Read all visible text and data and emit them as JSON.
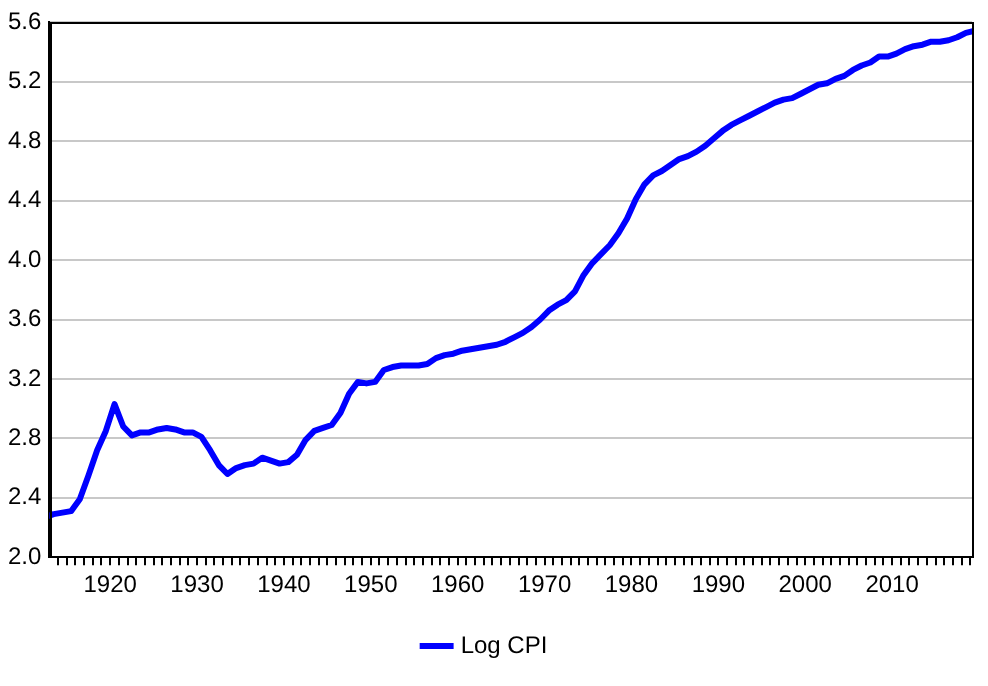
{
  "chart_data": {
    "type": "line",
    "x": [
      1913,
      1913.5,
      1914.5,
      1915.5,
      1916.5,
      1917.5,
      1918.5,
      1919.5,
      1920.5,
      1921.5,
      1922.5,
      1923.5,
      1924.5,
      1925.5,
      1926.5,
      1927.5,
      1928.5,
      1929.5,
      1930.5,
      1931.5,
      1932.5,
      1933.5,
      1934.5,
      1935.5,
      1936.5,
      1937.5,
      1938.5,
      1939.5,
      1940.5,
      1941.5,
      1942.5,
      1943.5,
      1944.5,
      1945.5,
      1946.5,
      1947.5,
      1948.5,
      1949.5,
      1950.5,
      1951.5,
      1952.5,
      1953.5,
      1954.5,
      1955.5,
      1956.5,
      1957.5,
      1958.5,
      1959.5,
      1960.5,
      1961.5,
      1962.5,
      1963.5,
      1964.5,
      1965.5,
      1966.5,
      1967.5,
      1968.5,
      1969.5,
      1970.5,
      1971.5,
      1972.5,
      1973.5,
      1974.5,
      1975.5,
      1976.5,
      1977.5,
      1978.5,
      1979.5,
      1980.5,
      1981.5,
      1982.5,
      1983.5,
      1984.5,
      1985.5,
      1986.5,
      1987.5,
      1988.5,
      1989.5,
      1990.5,
      1991.5,
      1992.5,
      1993.5,
      1994.5,
      1995.5,
      1996.5,
      1997.5,
      1998.5,
      1999.5,
      2000.5,
      2001.5,
      2002.5,
      2003.5,
      2004.5,
      2005.5,
      2006.5,
      2007.5,
      2008.5,
      2009.5,
      2010.5,
      2011.5,
      2012.5,
      2013.5,
      2014.5,
      2015.5,
      2016.5,
      2017.5,
      2018.5,
      2019.2
    ],
    "series": [
      {
        "name": "Log CPI",
        "color": "#0000ff",
        "values": [
          2.28,
          2.29,
          2.3,
          2.31,
          2.39,
          2.55,
          2.72,
          2.85,
          3.03,
          2.88,
          2.82,
          2.84,
          2.84,
          2.86,
          2.87,
          2.86,
          2.84,
          2.84,
          2.81,
          2.72,
          2.62,
          2.56,
          2.6,
          2.62,
          2.63,
          2.67,
          2.65,
          2.63,
          2.64,
          2.69,
          2.79,
          2.85,
          2.87,
          2.89,
          2.97,
          3.1,
          3.18,
          3.17,
          3.18,
          3.26,
          3.28,
          3.29,
          3.29,
          3.29,
          3.3,
          3.34,
          3.36,
          3.37,
          3.39,
          3.4,
          3.41,
          3.42,
          3.43,
          3.45,
          3.48,
          3.51,
          3.55,
          3.6,
          3.66,
          3.7,
          3.73,
          3.79,
          3.9,
          3.98,
          4.04,
          4.1,
          4.18,
          4.28,
          4.41,
          4.51,
          4.57,
          4.6,
          4.64,
          4.68,
          4.7,
          4.73,
          4.77,
          4.82,
          4.87,
          4.91,
          4.94,
          4.97,
          5.0,
          5.03,
          5.06,
          5.08,
          5.09,
          5.12,
          5.15,
          5.18,
          5.19,
          5.22,
          5.24,
          5.28,
          5.31,
          5.33,
          5.37,
          5.37,
          5.39,
          5.42,
          5.44,
          5.45,
          5.47,
          5.47,
          5.48,
          5.5,
          5.53,
          5.54
        ]
      }
    ],
    "xlim": [
      1913,
      2019.2
    ],
    "xticks": [
      {
        "value": 1914,
        "label": null
      },
      {
        "value": 1915,
        "label": null
      },
      {
        "value": 1916,
        "label": null
      },
      {
        "value": 1917,
        "label": null
      },
      {
        "value": 1918,
        "label": null
      },
      {
        "value": 1919,
        "label": null
      },
      1920,
      {
        "value": 1921,
        "label": null
      },
      {
        "value": 1922,
        "label": null
      },
      {
        "value": 1923,
        "label": null
      },
      {
        "value": 1924,
        "label": null
      },
      {
        "value": 1925,
        "label": null
      },
      {
        "value": 1926,
        "label": null
      },
      {
        "value": 1927,
        "label": null
      },
      {
        "value": 1928,
        "label": null
      },
      {
        "value": 1929,
        "label": null
      },
      1930,
      {
        "value": 1931,
        "label": null
      },
      {
        "value": 1932,
        "label": null
      },
      {
        "value": 1933,
        "label": null
      },
      {
        "value": 1934,
        "label": null
      },
      {
        "value": 1935,
        "label": null
      },
      {
        "value": 1936,
        "label": null
      },
      {
        "value": 1937,
        "label": null
      },
      {
        "value": 1938,
        "label": null
      },
      {
        "value": 1939,
        "label": null
      },
      1940,
      {
        "value": 1941,
        "label": null
      },
      {
        "value": 1942,
        "label": null
      },
      {
        "value": 1943,
        "label": null
      },
      {
        "value": 1944,
        "label": null
      },
      {
        "value": 1945,
        "label": null
      },
      {
        "value": 1946,
        "label": null
      },
      {
        "value": 1947,
        "label": null
      },
      {
        "value": 1948,
        "label": null
      },
      {
        "value": 1949,
        "label": null
      },
      1950,
      {
        "value": 1951,
        "label": null
      },
      {
        "value": 1952,
        "label": null
      },
      {
        "value": 1953,
        "label": null
      },
      {
        "value": 1954,
        "label": null
      },
      {
        "value": 1955,
        "label": null
      },
      {
        "value": 1956,
        "label": null
      },
      {
        "value": 1957,
        "label": null
      },
      {
        "value": 1958,
        "label": null
      },
      {
        "value": 1959,
        "label": null
      },
      1960,
      {
        "value": 1961,
        "label": null
      },
      {
        "value": 1962,
        "label": null
      },
      {
        "value": 1963,
        "label": null
      },
      {
        "value": 1964,
        "label": null
      },
      {
        "value": 1965,
        "label": null
      },
      {
        "value": 1966,
        "label": null
      },
      {
        "value": 1967,
        "label": null
      },
      {
        "value": 1968,
        "label": null
      },
      {
        "value": 1969,
        "label": null
      },
      1970,
      {
        "value": 1971,
        "label": null
      },
      {
        "value": 1972,
        "label": null
      },
      {
        "value": 1973,
        "label": null
      },
      {
        "value": 1974,
        "label": null
      },
      {
        "value": 1975,
        "label": null
      },
      {
        "value": 1976,
        "label": null
      },
      {
        "value": 1977,
        "label": null
      },
      {
        "value": 1978,
        "label": null
      },
      {
        "value": 1979,
        "label": null
      },
      1980,
      {
        "value": 1981,
        "label": null
      },
      {
        "value": 1982,
        "label": null
      },
      {
        "value": 1983,
        "label": null
      },
      {
        "value": 1984,
        "label": null
      },
      {
        "value": 1985,
        "label": null
      },
      {
        "value": 1986,
        "label": null
      },
      {
        "value": 1987,
        "label": null
      },
      {
        "value": 1988,
        "label": null
      },
      {
        "value": 1989,
        "label": null
      },
      1990,
      {
        "value": 1991,
        "label": null
      },
      {
        "value": 1992,
        "label": null
      },
      {
        "value": 1993,
        "label": null
      },
      {
        "value": 1994,
        "label": null
      },
      {
        "value": 1995,
        "label": null
      },
      {
        "value": 1996,
        "label": null
      },
      {
        "value": 1997,
        "label": null
      },
      {
        "value": 1998,
        "label": null
      },
      {
        "value": 1999,
        "label": null
      },
      2000,
      {
        "value": 2001,
        "label": null
      },
      {
        "value": 2002,
        "label": null
      },
      {
        "value": 2003,
        "label": null
      },
      {
        "value": 2004,
        "label": null
      },
      {
        "value": 2005,
        "label": null
      },
      {
        "value": 2006,
        "label": null
      },
      {
        "value": 2007,
        "label": null
      },
      {
        "value": 2008,
        "label": null
      },
      {
        "value": 2009,
        "label": null
      },
      2010,
      {
        "value": 2011,
        "label": null
      },
      {
        "value": 2012,
        "label": null
      },
      {
        "value": 2013,
        "label": null
      },
      {
        "value": 2014,
        "label": null
      },
      {
        "value": 2015,
        "label": null
      },
      {
        "value": 2016,
        "label": null
      },
      {
        "value": 2017,
        "label": null
      },
      {
        "value": 2018,
        "label": null
      },
      {
        "value": 2019,
        "label": null
      }
    ],
    "ylim": [
      2.0,
      5.6
    ],
    "yticks": [
      {
        "value": 2.0,
        "label": "2.0"
      },
      2.4,
      2.8,
      3.2,
      3.6,
      {
        "value": 4.0,
        "label": "4.0"
      },
      4.4,
      4.8,
      5.2,
      5.6
    ],
    "grid": "y",
    "legend": "bottom",
    "marker": "none",
    "line_style": "solid"
  }
}
